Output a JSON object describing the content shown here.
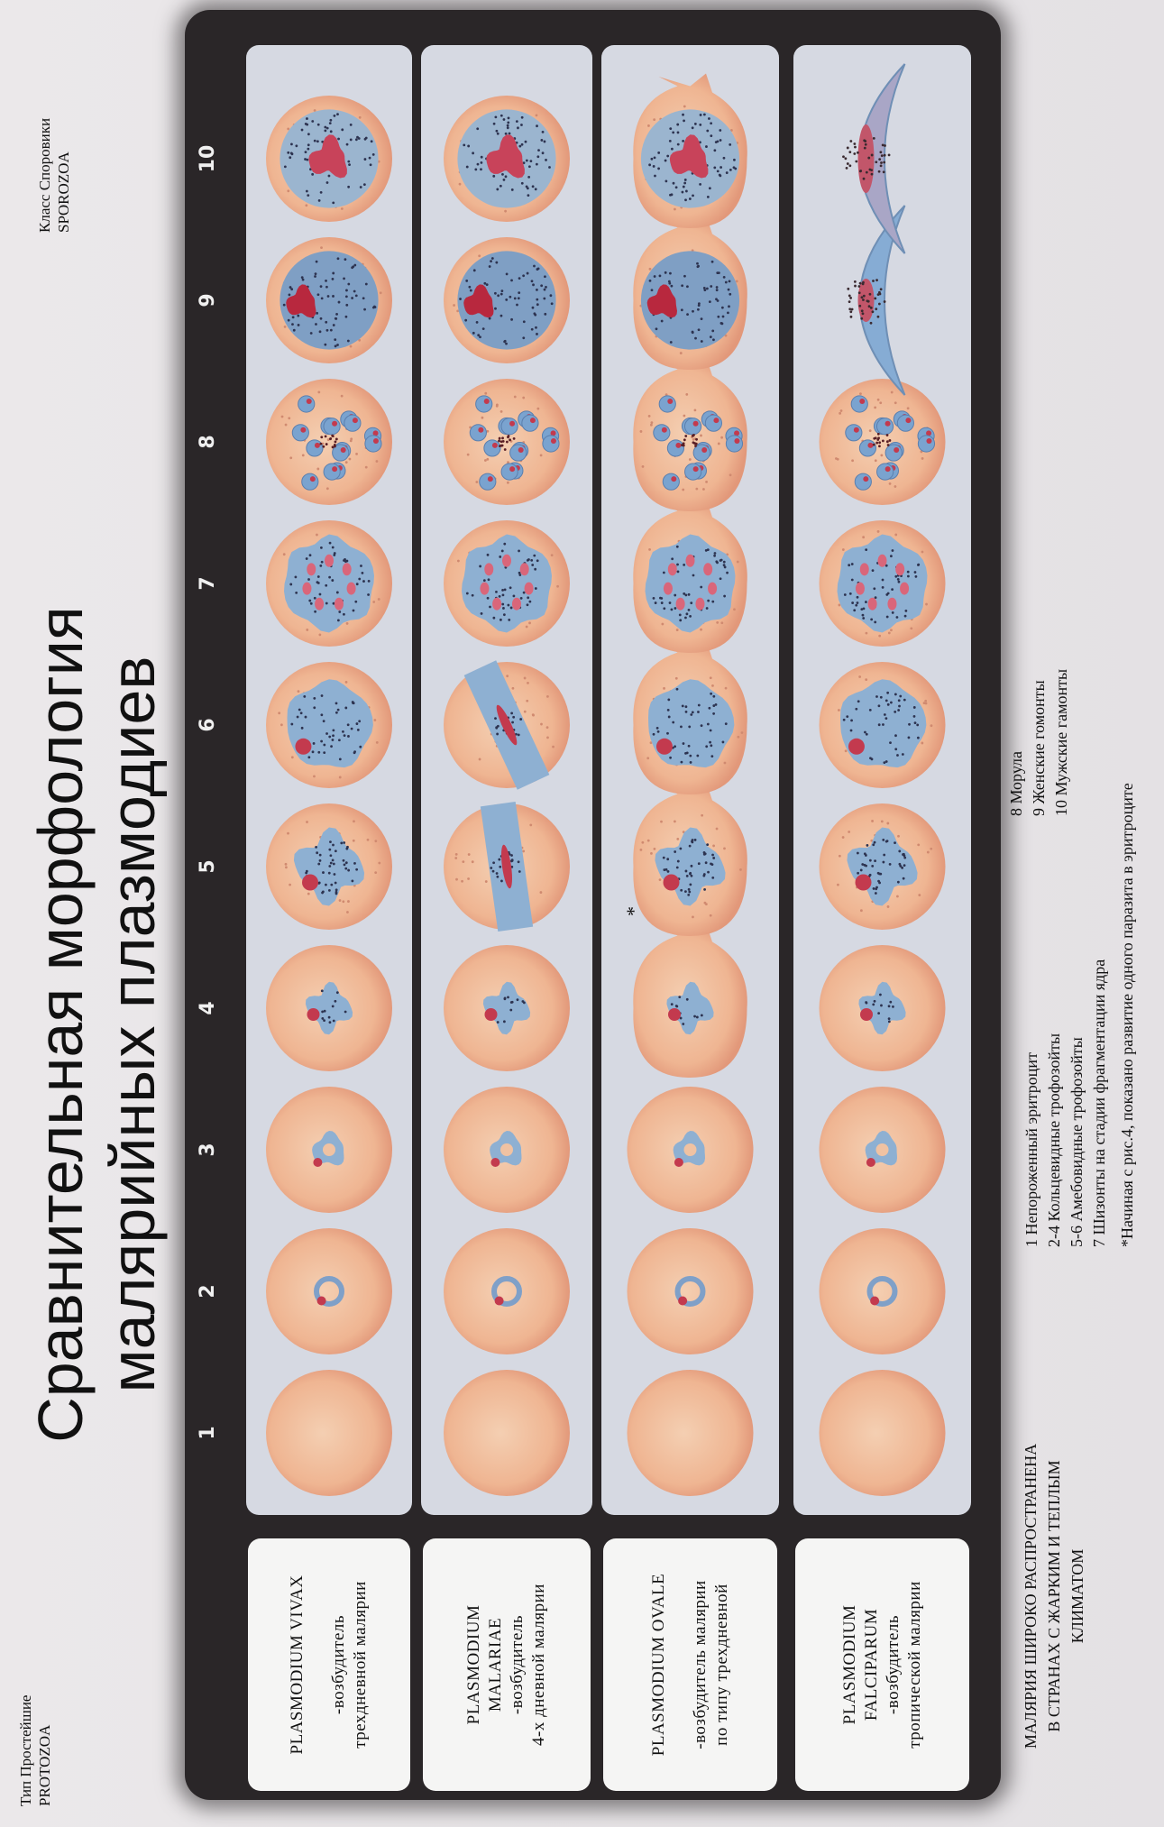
{
  "title": {
    "line1": "Сравнительная морфология",
    "line2": "малярийных плазмодиев"
  },
  "class_label": {
    "line1": "Класс Споровики",
    "line2": "SPOROZOA"
  },
  "type_label": {
    "line1": "Тип Простейшие",
    "line2": "PROTOZOA"
  },
  "stage_numbers": [
    "1",
    "2",
    "3",
    "4",
    "5",
    "6",
    "7",
    "8",
    "9",
    "10"
  ],
  "species": [
    {
      "name_lines": [
        "PLASMODIUM VIVAX"
      ],
      "desc_lines": [
        "-возбудитель",
        "трехдневной малярии"
      ],
      "gap": true,
      "cell_shape": "round"
    },
    {
      "name_lines": [
        "PLASMODIUM",
        "MALARIAE"
      ],
      "desc_lines": [
        "-возбудитель",
        "4-х дневной малярии"
      ],
      "gap": false,
      "cell_shape": "round"
    },
    {
      "name_lines": [
        "PLASMODIUM OVALE"
      ],
      "desc_lines": [
        "-возбудитель малярии",
        "по типу трехдневной"
      ],
      "gap": true,
      "cell_shape": "oval-fringed"
    },
    {
      "name_lines": [
        "PLASMODIUM",
        "FALCIPARUM"
      ],
      "desc_lines": [
        "-возбудитель",
        "тропической малярии"
      ],
      "gap": false,
      "cell_shape": "round",
      "gamont_shape": "crescent"
    }
  ],
  "note_marker": "*",
  "distribution_note": [
    "МАЛЯРИЯ ШИРОКО РАСПРОСТРАНЕНА",
    "В СТРАНАХ С ЖАРКИМ И ТЕПЛЫМ",
    "КЛИМАТОМ"
  ],
  "legend_a": [
    "1 Непороженный эритроцит",
    "2-4 Кольцевидные трофозойты",
    "5-6 Амебовидные трофозойты",
    "7 Шизонты на стадии фрагментации ядра"
  ],
  "legend_b": [
    "8 Морула",
    "9 Женские гомонты",
    "10 Мужские гамонты"
  ],
  "footnote": "*Начиная с рис.4, показано развитие одного паразита в эритроците",
  "colors": {
    "frame": "#2a2628",
    "panel": "#d6d9e2",
    "erythrocyte": "#eeb08e",
    "parasite": "#8eb0d2",
    "nucleus": "#c33a4e"
  }
}
